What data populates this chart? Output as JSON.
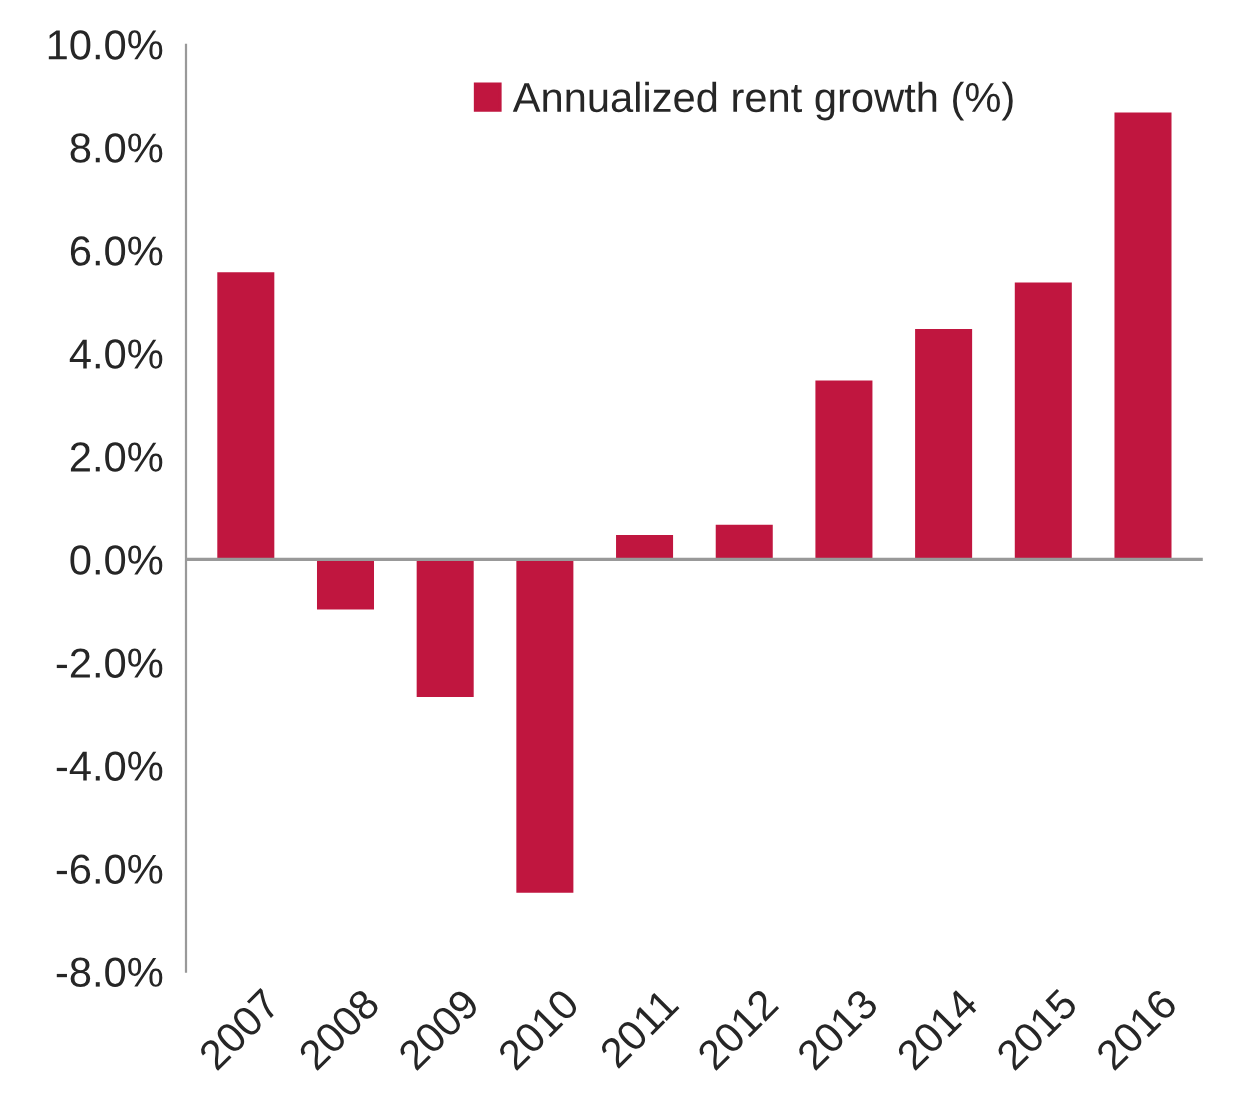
{
  "chart_data": {
    "type": "bar",
    "categories": [
      "2007",
      "2008",
      "2009",
      "2010",
      "2011",
      "2012",
      "2013",
      "2014",
      "2015",
      "2016"
    ],
    "series": [
      {
        "name": "Annualized rent growth (%)",
        "color": "#c0163f",
        "values": [
          5.6,
          -1.0,
          -2.7,
          -6.5,
          0.5,
          0.7,
          3.5,
          4.5,
          5.4,
          8.7
        ]
      }
    ],
    "ylim": [
      -8,
      10
    ],
    "yticks": [
      {
        "value": -8,
        "label": "-8.0%"
      },
      {
        "value": -6,
        "label": "-6.0%"
      },
      {
        "value": -4,
        "label": "-4.0%"
      },
      {
        "value": -2,
        "label": "-2.0%"
      },
      {
        "value": 0,
        "label": "0.0%"
      },
      {
        "value": 2,
        "label": "2.0%"
      },
      {
        "value": 4,
        "label": "4.0%"
      },
      {
        "value": 6,
        "label": "6.0%"
      },
      {
        "value": 8,
        "label": "8.0%"
      },
      {
        "value": 10,
        "label": "10.0%"
      }
    ],
    "ref_lines": [
      {
        "axis": "y",
        "value": 0,
        "color": "#999999"
      }
    ],
    "legend": "top"
  }
}
